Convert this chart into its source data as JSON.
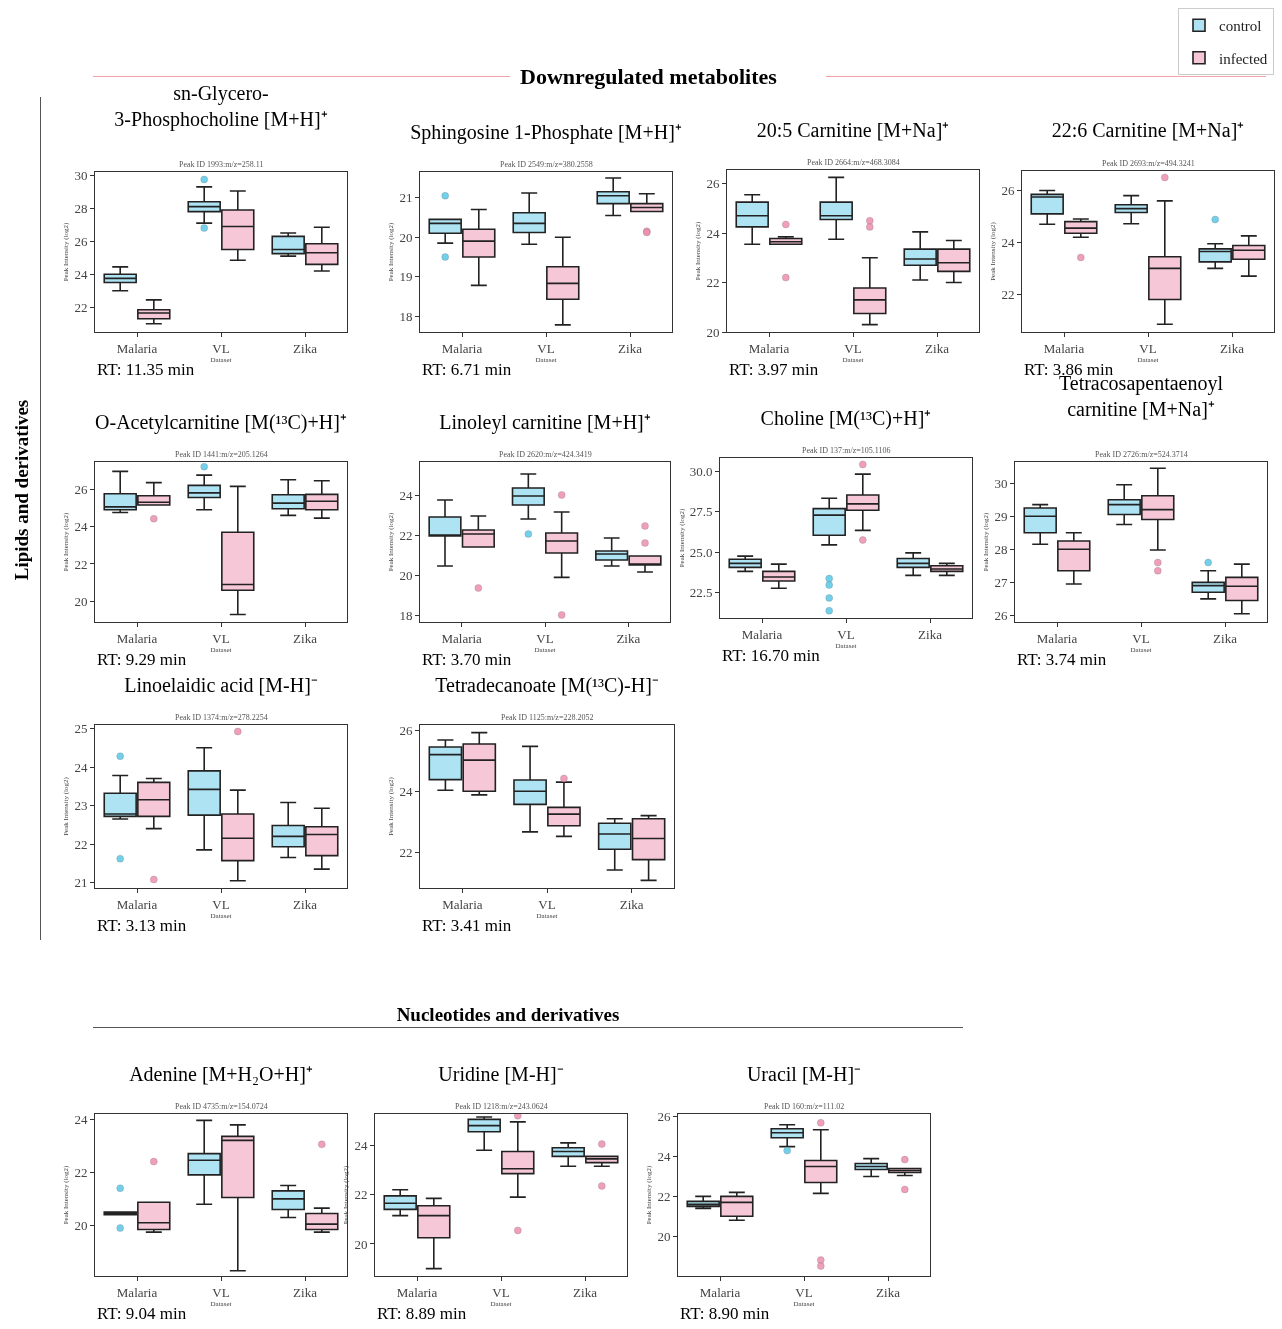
{
  "chart_data": [
    {
      "type": "other",
      "title": "Downregulated metabolites",
      "annotations": [
        "Lipids and derivatives",
        "Nucleotides and derivatives"
      ]
    },
    {
      "type": "box",
      "title": "sn-Glycero-\n3-Phosphocholine [M+H]⁺",
      "subtitle": "Peak ID 1993:m/z=258.11",
      "xlabel": "Dataset",
      "ylabel": "Peak Intensity (log2)",
      "annotations": [
        "RT: 11.35 min"
      ],
      "categories": [
        "Malaria",
        "VL",
        "Zika"
      ],
      "ylim": [
        20.5,
        30.2
      ],
      "yticks": [
        22,
        24,
        26,
        28,
        30
      ],
      "series": [
        {
          "color": "#5bc8e8",
          "boxes": [
            {
              "low": 23.0,
              "q1": 23.5,
              "median": 23.75,
              "q3": 24.0,
              "high": 24.45
            },
            {
              "low": 27.1,
              "q1": 27.8,
              "median": 28.1,
              "q3": 28.4,
              "high": 29.3,
              "outliers": [
                29.75,
                26.8
              ]
            },
            {
              "low": 25.1,
              "q1": 25.25,
              "median": 25.5,
              "q3": 26.3,
              "high": 26.5
            }
          ]
        },
        {
          "color": "#ee8fae",
          "boxes": [
            {
              "low": 21.0,
              "q1": 21.3,
              "median": 21.65,
              "q3": 21.85,
              "high": 22.45
            },
            {
              "low": 24.85,
              "q1": 25.5,
              "median": 26.9,
              "q3": 27.9,
              "high": 29.05
            },
            {
              "low": 24.2,
              "q1": 24.6,
              "median": 25.3,
              "q3": 25.85,
              "high": 26.85
            }
          ]
        }
      ]
    },
    {
      "type": "box",
      "title": "Sphingosine 1-Phosphate [M+H]⁺",
      "subtitle": "Peak ID 2549:m/z=380.2558",
      "xlabel": "Dataset",
      "ylabel": "Peak Intensity (log2)",
      "annotations": [
        "RT: 6.71 min"
      ],
      "categories": [
        "Malaria",
        "VL",
        "Zika"
      ],
      "ylim": [
        17.6,
        21.65
      ],
      "yticks": [
        18,
        19,
        20,
        21
      ],
      "series": [
        {
          "color": "#5bc8e8",
          "boxes": [
            {
              "low": 19.85,
              "q1": 20.1,
              "median": 20.35,
              "q3": 20.45,
              "high": 20.45,
              "outliers": [
                21.05,
                19.5
              ]
            },
            {
              "low": 19.82,
              "q1": 20.12,
              "median": 20.35,
              "q3": 20.62,
              "high": 21.12
            },
            {
              "low": 20.55,
              "q1": 20.85,
              "median": 21.05,
              "q3": 21.15,
              "high": 21.5
            }
          ]
        },
        {
          "color": "#ee8fae",
          "boxes": [
            {
              "low": 18.78,
              "q1": 19.5,
              "median": 19.9,
              "q3": 20.2,
              "high": 20.7
            },
            {
              "low": 17.78,
              "q1": 18.43,
              "median": 18.83,
              "q3": 19.25,
              "high": 20.0
            },
            {
              "low": 20.65,
              "q1": 20.65,
              "median": 20.75,
              "q3": 20.85,
              "high": 21.1,
              "outliers": [
                20.15,
                20.12
              ]
            }
          ]
        }
      ]
    },
    {
      "type": "box",
      "title": "20:5 Carnitine [M+Na]⁺",
      "subtitle": "Peak ID 2664:m/z=468.3084",
      "xlabel": "Dataset",
      "ylabel": "Peak Intensity (log2)",
      "annotations": [
        "RT: 3.97 min"
      ],
      "categories": [
        "Malaria",
        "VL",
        "Zika"
      ],
      "ylim": [
        20,
        26.55
      ],
      "yticks": [
        20,
        22,
        24,
        26
      ],
      "series": [
        {
          "color": "#5bc8e8",
          "boxes": [
            {
              "low": 23.55,
              "q1": 24.25,
              "median": 24.7,
              "q3": 25.25,
              "high": 25.55
            },
            {
              "low": 23.75,
              "q1": 24.55,
              "median": 24.7,
              "q3": 25.25,
              "high": 26.25
            },
            {
              "low": 22.1,
              "q1": 22.7,
              "median": 22.95,
              "q3": 23.35,
              "high": 24.05
            }
          ]
        },
        {
          "color": "#ee8fae",
          "boxes": [
            {
              "low": 23.55,
              "q1": 23.55,
              "median": 23.65,
              "q3": 23.78,
              "high": 23.85,
              "outliers": [
                24.35,
                22.2
              ]
            },
            {
              "low": 20.3,
              "q1": 20.75,
              "median": 21.3,
              "q3": 21.78,
              "high": 23.0,
              "outliers": [
                24.25,
                24.5
              ]
            },
            {
              "low": 22.0,
              "q1": 22.45,
              "median": 22.8,
              "q3": 23.35,
              "high": 23.7
            }
          ]
        }
      ]
    },
    {
      "type": "box",
      "title": "22:6 Carnitine [M+Na]⁺",
      "subtitle": "Peak ID 2693:m/z=494.3241",
      "xlabel": "Dataset",
      "ylabel": "Peak Intensity (log2)",
      "annotations": [
        "RT: 3.86 min"
      ],
      "categories": [
        "Malaria",
        "VL",
        "Zika"
      ],
      "ylim": [
        20.55,
        26.75
      ],
      "yticks": [
        22,
        24,
        26
      ],
      "legend": "top right",
      "series": [
        {
          "name": "control",
          "color": "#5bc8e8",
          "boxes": [
            {
              "low": 24.7,
              "q1": 25.1,
              "median": 25.75,
              "q3": 25.85,
              "high": 26.0
            },
            {
              "low": 24.72,
              "q1": 25.15,
              "median": 25.3,
              "q3": 25.45,
              "high": 25.8
            },
            {
              "low": 23.0,
              "q1": 23.25,
              "median": 23.65,
              "q3": 23.75,
              "high": 23.95,
              "outliers": [
                24.88
              ]
            }
          ]
        },
        {
          "name": "infected",
          "color": "#ee8fae",
          "boxes": [
            {
              "low": 24.2,
              "q1": 24.35,
              "median": 24.55,
              "q3": 24.8,
              "high": 24.9,
              "outliers": [
                23.42
              ]
            },
            {
              "low": 20.85,
              "q1": 21.8,
              "median": 23.0,
              "q3": 23.45,
              "high": 25.6,
              "outliers": [
                26.5
              ]
            },
            {
              "low": 22.7,
              "q1": 23.35,
              "median": 23.7,
              "q3": 23.88,
              "high": 24.25
            }
          ]
        }
      ]
    },
    {
      "type": "box",
      "title": "O-Acetylcarnitine [M(¹³C)+H]⁺",
      "subtitle": "Peak ID 1441:m/z=205.1264",
      "xlabel": "Dataset",
      "ylabel": "Peak Intensity (log2)",
      "annotations": [
        "RT: 9.29 min"
      ],
      "categories": [
        "Malaria",
        "VL",
        "Zika"
      ],
      "ylim": [
        18.9,
        27.45
      ],
      "yticks": [
        20,
        22,
        24,
        26
      ],
      "series": [
        {
          "color": "#5bc8e8",
          "boxes": [
            {
              "low": 24.75,
              "q1": 24.9,
              "median": 25.05,
              "q3": 25.75,
              "high": 26.95
            },
            {
              "low": 24.9,
              "q1": 25.55,
              "median": 25.8,
              "q3": 26.2,
              "high": 26.75,
              "outliers": [
                27.2
              ]
            },
            {
              "low": 24.6,
              "q1": 24.95,
              "median": 25.25,
              "q3": 25.7,
              "high": 26.5
            }
          ]
        },
        {
          "color": "#ee8fae",
          "boxes": [
            {
              "low": 25.15,
              "q1": 25.15,
              "median": 25.3,
              "q3": 25.65,
              "high": 26.35,
              "outliers": [
                24.42
              ]
            },
            {
              "low": 19.3,
              "q1": 20.6,
              "median": 20.9,
              "q3": 23.7,
              "high": 26.15
            },
            {
              "low": 24.45,
              "q1": 24.9,
              "median": 25.35,
              "q3": 25.72,
              "high": 26.45
            }
          ]
        }
      ]
    },
    {
      "type": "box",
      "title": "Linoleyl carnitine [M+H]⁺",
      "subtitle": "Peak ID 2620:m/z=424.3419",
      "xlabel": "Dataset",
      "ylabel": "Peak Intensity (log2)",
      "annotations": [
        "RT: 3.70 min"
      ],
      "categories": [
        "Malaria",
        "VL",
        "Zika"
      ],
      "ylim": [
        17.65,
        25.65
      ],
      "yticks": [
        18,
        20,
        22,
        24
      ],
      "series": [
        {
          "color": "#5bc8e8",
          "boxes": [
            {
              "low": 20.45,
              "q1": 21.95,
              "median": 22.0,
              "q3": 22.9,
              "high": 23.75
            },
            {
              "low": 22.8,
              "q1": 23.5,
              "median": 23.95,
              "q3": 24.35,
              "high": 25.05,
              "outliers": [
                22.05
              ]
            },
            {
              "low": 20.45,
              "q1": 20.75,
              "median": 21.05,
              "q3": 21.2,
              "high": 21.85
            }
          ]
        },
        {
          "color": "#ee8fae",
          "boxes": [
            {
              "low": 21.4,
              "q1": 21.4,
              "median": 22.05,
              "q3": 22.25,
              "high": 22.95,
              "outliers": [
                19.35
              ]
            },
            {
              "low": 19.88,
              "q1": 21.1,
              "median": 21.7,
              "q3": 22.1,
              "high": 23.15,
              "outliers": [
                24.0,
                18.0
              ]
            },
            {
              "low": 20.15,
              "q1": 20.5,
              "median": 20.55,
              "q3": 20.95,
              "high": 20.95,
              "outliers": [
                22.45,
                21.6
              ]
            }
          ]
        }
      ]
    },
    {
      "type": "box",
      "title": "Choline [M(¹³C)+H]⁺",
      "subtitle": "Peak ID 137:m/z=105.1106",
      "xlabel": "Dataset",
      "ylabel": "Peak Intensity (log2)",
      "annotations": [
        "RT: 16.70 min"
      ],
      "categories": [
        "Malaria",
        "VL",
        "Zika"
      ],
      "ylim": [
        20.9,
        30.85
      ],
      "yticks": [
        {
          "value": 22.5,
          "label": "22.5"
        },
        {
          "value": 25,
          "label": "25.0"
        },
        {
          "value": 27.5,
          "label": "27.5"
        },
        {
          "value": 30,
          "label": "30.0"
        }
      ],
      "series": [
        {
          "color": "#5bc8e8",
          "boxes": [
            {
              "low": 23.8,
              "q1": 24.05,
              "median": 24.3,
              "q3": 24.55,
              "high": 24.75
            },
            {
              "low": 25.45,
              "q1": 26.05,
              "median": 27.3,
              "q3": 27.7,
              "high": 28.35,
              "outliers": [
                23.35,
                22.95,
                22.15,
                21.35
              ]
            },
            {
              "low": 23.55,
              "q1": 24.05,
              "median": 24.3,
              "q3": 24.6,
              "high": 24.95
            }
          ]
        },
        {
          "color": "#ee8fae",
          "boxes": [
            {
              "low": 22.75,
              "q1": 23.2,
              "median": 23.45,
              "q3": 23.8,
              "high": 24.25
            },
            {
              "low": 26.35,
              "q1": 27.6,
              "median": 28.0,
              "q3": 28.55,
              "high": 29.85,
              "outliers": [
                30.45,
                25.75
              ]
            },
            {
              "low": 23.55,
              "q1": 23.8,
              "median": 23.95,
              "q3": 24.15,
              "high": 24.3
            }
          ]
        }
      ]
    },
    {
      "type": "box",
      "title": "Tetracosapentaenoyl\ncarnitine [M+Na]⁺",
      "subtitle": "Peak ID 2726:m/z=524.3714",
      "xlabel": "Dataset",
      "ylabel": "Peak Intensity (log2)",
      "annotations": [
        "RT: 3.74 min"
      ],
      "categories": [
        "Malaria",
        "VL",
        "Zika"
      ],
      "ylim": [
        25.8,
        30.64
      ],
      "yticks": [
        26,
        27,
        28,
        29,
        30
      ],
      "series": [
        {
          "color": "#5bc8e8",
          "boxes": [
            {
              "low": 28.15,
              "q1": 28.5,
              "median": 29.0,
              "q3": 29.25,
              "high": 29.35
            },
            {
              "low": 28.75,
              "q1": 29.05,
              "median": 29.35,
              "q3": 29.5,
              "high": 29.95
            },
            {
              "low": 26.5,
              "q1": 26.7,
              "median": 26.9,
              "q3": 27.0,
              "high": 27.35,
              "outliers": [
                27.6
              ]
            }
          ]
        },
        {
          "color": "#ee8fae",
          "boxes": [
            {
              "low": 26.95,
              "q1": 27.35,
              "median": 28.0,
              "q3": 28.25,
              "high": 28.5
            },
            {
              "low": 27.98,
              "q1": 28.9,
              "median": 29.2,
              "q3": 29.62,
              "high": 30.45,
              "outliers": [
                27.6,
                27.35
              ]
            },
            {
              "low": 26.05,
              "q1": 26.45,
              "median": 26.88,
              "q3": 27.15,
              "high": 27.55
            }
          ]
        }
      ]
    },
    {
      "type": "box",
      "title": "Linoelaidic acid [M-H]⁻",
      "subtitle": "Peak ID 1374:m/z=278.2254",
      "xlabel": "Dataset",
      "ylabel": "Peak Intensity (log2)",
      "annotations": [
        "RT: 3.13 min"
      ],
      "categories": [
        "Malaria",
        "VL",
        "Zika"
      ],
      "ylim": [
        20.86,
        25.09
      ],
      "yticks": [
        21,
        22,
        23,
        24,
        25
      ],
      "series": [
        {
          "color": "#5bc8e8",
          "boxes": [
            {
              "low": 22.65,
              "q1": 22.72,
              "median": 22.78,
              "q3": 23.32,
              "high": 23.78,
              "outliers": [
                24.28,
                21.62
              ]
            },
            {
              "low": 21.85,
              "q1": 22.75,
              "median": 23.42,
              "q3": 23.9,
              "high": 24.5
            },
            {
              "low": 21.65,
              "q1": 21.93,
              "median": 22.2,
              "q3": 22.48,
              "high": 23.08
            }
          ]
        },
        {
          "color": "#ee8fae",
          "boxes": [
            {
              "low": 22.4,
              "q1": 22.72,
              "median": 23.15,
              "q3": 23.6,
              "high": 23.7,
              "outliers": [
                21.08
              ]
            },
            {
              "low": 21.05,
              "q1": 21.57,
              "median": 22.15,
              "q3": 22.78,
              "high": 23.4,
              "outliers": [
                24.92
              ]
            },
            {
              "low": 21.35,
              "q1": 21.7,
              "median": 22.25,
              "q3": 22.45,
              "high": 22.93
            }
          ]
        }
      ]
    },
    {
      "type": "box",
      "title": "Tetradecanoate [M(¹³C)-H]⁻",
      "subtitle": "Peak ID 1125:m/z=228.2052",
      "xlabel": "Dataset",
      "ylabel": "Peak Intensity (log2)",
      "annotations": [
        "RT: 3.41 min"
      ],
      "categories": [
        "Malaria",
        "VL",
        "Zika"
      ],
      "ylim": [
        20.83,
        26.17
      ],
      "yticks": [
        22,
        24,
        26
      ],
      "series": [
        {
          "color": "#5bc8e8",
          "boxes": [
            {
              "low": 24.03,
              "q1": 24.38,
              "median": 25.2,
              "q3": 25.45,
              "high": 25.68
            },
            {
              "low": 22.67,
              "q1": 23.57,
              "median": 24.0,
              "q3": 24.37,
              "high": 25.47
            },
            {
              "low": 21.42,
              "q1": 22.1,
              "median": 22.6,
              "q3": 22.95,
              "high": 23.1
            }
          ]
        },
        {
          "color": "#ee8fae",
          "boxes": [
            {
              "low": 23.88,
              "q1": 24.0,
              "median": 25.02,
              "q3": 25.55,
              "high": 25.92
            },
            {
              "low": 22.52,
              "q1": 22.87,
              "median": 23.25,
              "q3": 23.47,
              "high": 24.3,
              "outliers": [
                24.42
              ]
            },
            {
              "low": 21.08,
              "q1": 21.76,
              "median": 22.45,
              "q3": 23.1,
              "high": 23.2
            }
          ]
        }
      ]
    },
    {
      "type": "box",
      "title": "Adenine [M+H₂O+H]⁺",
      "subtitle": "Peak ID 4735:m/z=154.0724",
      "xlabel": "Dataset",
      "ylabel": "Peak Intensity (log2)",
      "annotations": [
        "RT: 9.04 min"
      ],
      "categories": [
        "Malaria",
        "VL",
        "Zika"
      ],
      "ylim": [
        18.1,
        24.19
      ],
      "yticks": [
        20,
        22,
        24
      ],
      "series": [
        {
          "color": "#5bc8e8",
          "boxes": [
            {
              "low": 20.4,
              "q1": 20.4,
              "median": 20.45,
              "q3": 20.5,
              "high": 20.5,
              "outliers": [
                21.4,
                19.9
              ]
            },
            {
              "low": 20.8,
              "q1": 21.9,
              "median": 22.45,
              "q3": 22.7,
              "high": 23.95
            },
            {
              "low": 20.3,
              "q1": 20.6,
              "median": 21.0,
              "q3": 21.3,
              "high": 21.5
            }
          ]
        },
        {
          "color": "#ee8fae",
          "boxes": [
            {
              "low": 19.75,
              "q1": 19.85,
              "median": 20.1,
              "q3": 20.87,
              "high": 20.87,
              "outliers": [
                22.4
              ]
            },
            {
              "low": 18.3,
              "q1": 21.05,
              "median": 23.2,
              "q3": 23.35,
              "high": 23.78
            },
            {
              "low": 19.75,
              "q1": 19.85,
              "median": 20.05,
              "q3": 20.45,
              "high": 20.65,
              "outliers": [
                23.05
              ]
            }
          ]
        }
      ]
    },
    {
      "type": "box",
      "title": "Uridine [M-H]⁻",
      "subtitle": "Peak ID 1218:m/z=243.0624",
      "xlabel": "Dataset",
      "ylabel": "Peak Intensity (log2)",
      "annotations": [
        "RT: 8.89 min"
      ],
      "categories": [
        "Malaria",
        "VL",
        "Zika"
      ],
      "ylim": [
        18.7,
        25.27
      ],
      "yticks": [
        20,
        22,
        24
      ],
      "series": [
        {
          "color": "#5bc8e8",
          "boxes": [
            {
              "low": 21.15,
              "q1": 21.4,
              "median": 21.65,
              "q3": 21.95,
              "high": 22.2
            },
            {
              "low": 23.8,
              "q1": 24.55,
              "median": 24.8,
              "q3": 25.05,
              "high": 25.15
            },
            {
              "low": 23.15,
              "q1": 23.55,
              "median": 23.75,
              "q3": 23.9,
              "high": 24.1
            }
          ]
        },
        {
          "color": "#ee8fae",
          "boxes": [
            {
              "low": 19.0,
              "q1": 20.25,
              "median": 21.15,
              "q3": 21.55,
              "high": 21.85
            },
            {
              "low": 21.9,
              "q1": 22.85,
              "median": 23.05,
              "q3": 23.75,
              "high": 24.95,
              "outliers": [
                20.55,
                25.2
              ]
            },
            {
              "low": 23.15,
              "q1": 23.3,
              "median": 23.45,
              "q3": 23.55,
              "high": 23.55,
              "outliers": [
                24.05,
                22.35
              ]
            }
          ]
        }
      ]
    },
    {
      "type": "box",
      "title": "Uracil [M-H]⁻",
      "subtitle": "Peak ID 160:m/z=111.02",
      "xlabel": "Dataset",
      "ylabel": "Peak Intensity (log2)",
      "annotations": [
        "RT: 8.90 min"
      ],
      "categories": [
        "Malaria",
        "VL",
        "Zika"
      ],
      "ylim": [
        18.0,
        26.14
      ],
      "yticks": [
        20,
        22,
        24,
        26
      ],
      "series": [
        {
          "color": "#5bc8e8",
          "boxes": [
            {
              "low": 21.4,
              "q1": 21.5,
              "median": 21.6,
              "q3": 21.75,
              "high": 22.0
            },
            {
              "low": 24.5,
              "q1": 24.95,
              "median": 25.2,
              "q3": 25.4,
              "high": 25.6,
              "outliers": [
                24.3
              ]
            },
            {
              "low": 23.0,
              "q1": 23.35,
              "median": 23.5,
              "q3": 23.65,
              "high": 23.9
            }
          ]
        },
        {
          "color": "#ee8fae",
          "boxes": [
            {
              "low": 20.8,
              "q1": 21.0,
              "median": 21.7,
              "q3": 22.0,
              "high": 22.2
            },
            {
              "low": 22.15,
              "q1": 22.7,
              "median": 23.5,
              "q3": 23.8,
              "high": 25.35,
              "outliers": [
                18.8,
                18.5,
                25.7
              ]
            },
            {
              "low": 23.05,
              "q1": 23.2,
              "median": 23.3,
              "q3": 23.4,
              "high": 23.4,
              "outliers": [
                23.85,
                22.35
              ]
            }
          ]
        }
      ]
    }
  ]
}
